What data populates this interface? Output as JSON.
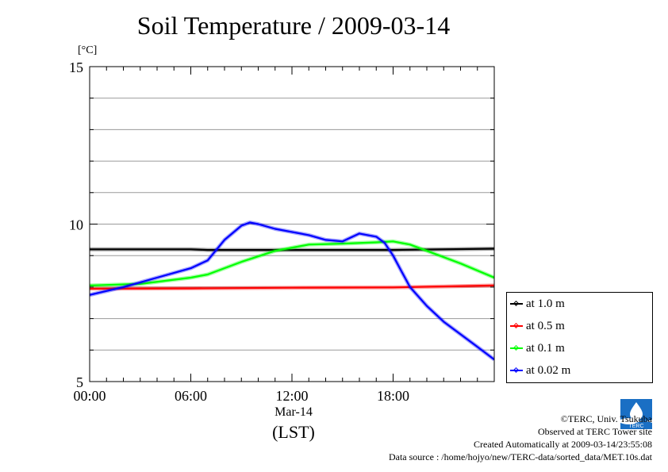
{
  "header": {
    "title": "Soil Temperature / 2009-03-14",
    "unit": "[°C]"
  },
  "chart_data": {
    "type": "line",
    "title": "Soil Temperature / 2009-03-14",
    "ylabel": "[°C]",
    "xlabel": "(LST)",
    "x_date_label": "Mar-14",
    "xlim": [
      0,
      24
    ],
    "ylim": [
      5,
      15
    ],
    "x_ticks": [
      0,
      6,
      12,
      18
    ],
    "x_tick_labels": [
      "00:00",
      "06:00",
      "12:00",
      "18:00"
    ],
    "y_ticks": [
      5,
      10,
      15
    ],
    "y_tick_labels": [
      "5",
      "10",
      "15"
    ],
    "grid": true,
    "legend_position": "bottom-right-outside",
    "series": [
      {
        "name": "at 1.0 m",
        "color": "#000000",
        "x": [
          0,
          6,
          7,
          12,
          18,
          24
        ],
        "y": [
          9.2,
          9.2,
          9.18,
          9.18,
          9.18,
          9.22
        ]
      },
      {
        "name": "at 0.5 m",
        "color": "#ff0000",
        "x": [
          0,
          6,
          12,
          18,
          24
        ],
        "y": [
          7.95,
          7.96,
          7.98,
          7.99,
          8.05
        ]
      },
      {
        "name": "at 0.1 m",
        "color": "#00ff00",
        "x": [
          0,
          3,
          6,
          7,
          9,
          11,
          13,
          15,
          17,
          18,
          19,
          20,
          22,
          24
        ],
        "y": [
          8.05,
          8.1,
          8.3,
          8.4,
          8.8,
          9.15,
          9.35,
          9.38,
          9.42,
          9.45,
          9.35,
          9.15,
          8.75,
          8.3
        ]
      },
      {
        "name": "at 0.02 m",
        "color": "#0000ff",
        "x": [
          0,
          2,
          4,
          6,
          7,
          8,
          9,
          9.5,
          10,
          11,
          12,
          13,
          14,
          15,
          16,
          17,
          17.5,
          18,
          18.5,
          19,
          20,
          21,
          22,
          23,
          24
        ],
        "y": [
          7.75,
          8.0,
          8.3,
          8.6,
          8.85,
          9.5,
          9.95,
          10.05,
          10.0,
          9.85,
          9.75,
          9.65,
          9.5,
          9.45,
          9.7,
          9.6,
          9.4,
          9.0,
          8.5,
          8.0,
          7.4,
          6.9,
          6.5,
          6.1,
          5.7
        ]
      }
    ]
  },
  "legend": {
    "items": [
      "at 1.0 m",
      "at 0.5 m",
      "at 0.1 m",
      "at 0.02 m"
    ]
  },
  "footer": {
    "copyright": "©TERC, Univ. Tsukuba",
    "observed": "Observed at TERC Tower site",
    "created": "Created Automatically at 2009-03-14/23:55:08",
    "source": "Data source : /home/hojyo/new/TERC-data/sorted_data/MET.10s.dat",
    "logo_text": "TERC"
  }
}
